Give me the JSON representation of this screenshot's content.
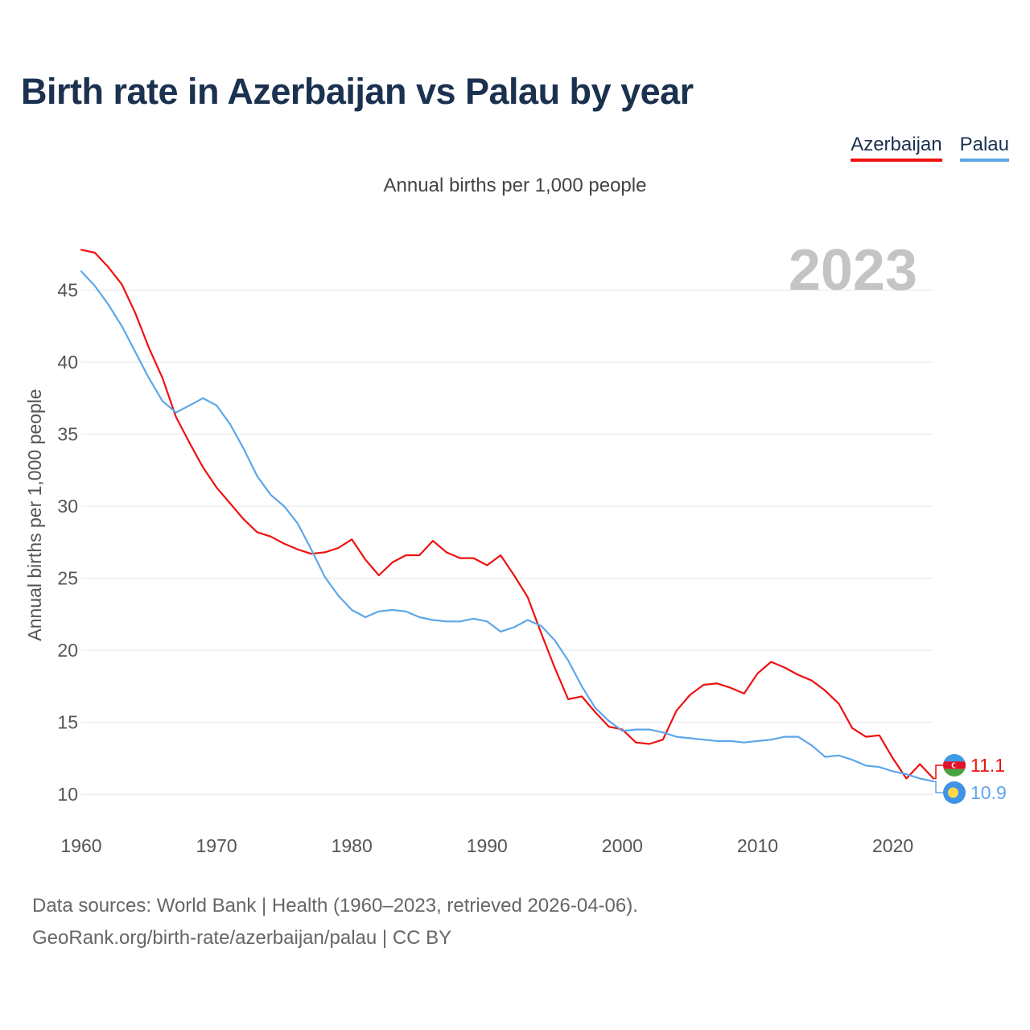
{
  "title": "Birth rate in Azerbaijan vs Palau by year",
  "legend": [
    {
      "name": "Azerbaijan",
      "color": "#ee1111"
    },
    {
      "name": "Palau",
      "color": "#5ea6ea"
    }
  ],
  "subtitle": "Annual births per 1,000 people",
  "year_label": "2023",
  "source_line1": "Data sources: World Bank | Health (1960–2023, retrieved 2026-04-06).",
  "source_line2": "GeoRank.org/birth-rate/azerbaijan/palau | CC BY",
  "chart_data": {
    "type": "line",
    "title": "Birth rate in Azerbaijan vs Palau by year",
    "subtitle": "Annual births per 1,000 people",
    "xlabel": "",
    "ylabel": "Annual births per 1,000 people",
    "xlim": [
      1960,
      2023
    ],
    "ylim": [
      8,
      50
    ],
    "x_ticks": [
      1960,
      1970,
      1980,
      1990,
      2000,
      2010,
      2020
    ],
    "y_ticks": [
      10,
      15,
      20,
      25,
      30,
      35,
      40,
      45
    ],
    "grid": true,
    "legend_position": "top-right",
    "x": [
      1960,
      1961,
      1962,
      1963,
      1964,
      1965,
      1966,
      1967,
      1968,
      1969,
      1970,
      1971,
      1972,
      1973,
      1974,
      1975,
      1976,
      1977,
      1978,
      1979,
      1980,
      1981,
      1982,
      1983,
      1984,
      1985,
      1986,
      1987,
      1988,
      1989,
      1990,
      1991,
      1992,
      1993,
      1994,
      1995,
      1996,
      1997,
      1998,
      1999,
      2000,
      2001,
      2002,
      2003,
      2004,
      2005,
      2006,
      2007,
      2008,
      2009,
      2010,
      2011,
      2012,
      2013,
      2014,
      2015,
      2016,
      2017,
      2018,
      2019,
      2020,
      2021,
      2022,
      2023
    ],
    "series": [
      {
        "name": "Azerbaijan",
        "color": "#ee1111",
        "end_label": "11.1",
        "values": [
          47.8,
          47.6,
          46.6,
          45.4,
          43.4,
          41.0,
          38.9,
          36.2,
          34.4,
          32.7,
          31.3,
          30.2,
          29.1,
          28.2,
          27.9,
          27.4,
          27.0,
          26.7,
          26.8,
          27.1,
          27.7,
          26.3,
          25.2,
          26.1,
          26.6,
          26.6,
          27.6,
          26.8,
          26.4,
          26.4,
          25.9,
          26.6,
          25.2,
          23.7,
          21.2,
          18.8,
          16.6,
          16.8,
          15.7,
          14.7,
          14.5,
          13.6,
          13.5,
          13.8,
          15.8,
          16.9,
          17.6,
          17.7,
          17.4,
          17.0,
          18.4,
          19.2,
          18.8,
          18.3,
          17.9,
          17.2,
          16.3,
          14.6,
          14.0,
          14.1,
          12.5,
          11.1,
          12.1,
          11.1
        ]
      },
      {
        "name": "Palau",
        "color": "#5ea6ea",
        "end_label": "10.9",
        "values": [
          46.3,
          45.3,
          44.0,
          42.5,
          40.7,
          38.9,
          37.3,
          36.5,
          37.0,
          37.5,
          37.0,
          35.7,
          34.0,
          32.1,
          30.8,
          30.0,
          28.8,
          27.0,
          25.1,
          23.8,
          22.8,
          22.3,
          22.7,
          22.8,
          22.7,
          22.3,
          22.1,
          22.0,
          22.0,
          22.2,
          22.0,
          21.3,
          21.6,
          22.1,
          21.7,
          20.7,
          19.3,
          17.5,
          16.0,
          15.1,
          14.4,
          14.5,
          14.5,
          14.3,
          14.0,
          13.9,
          13.8,
          13.7,
          13.7,
          13.6,
          13.7,
          13.8,
          14.0,
          14.0,
          13.4,
          12.6,
          12.7,
          12.4,
          12.0,
          11.9,
          11.6,
          11.4,
          11.1,
          10.9
        ]
      }
    ]
  }
}
